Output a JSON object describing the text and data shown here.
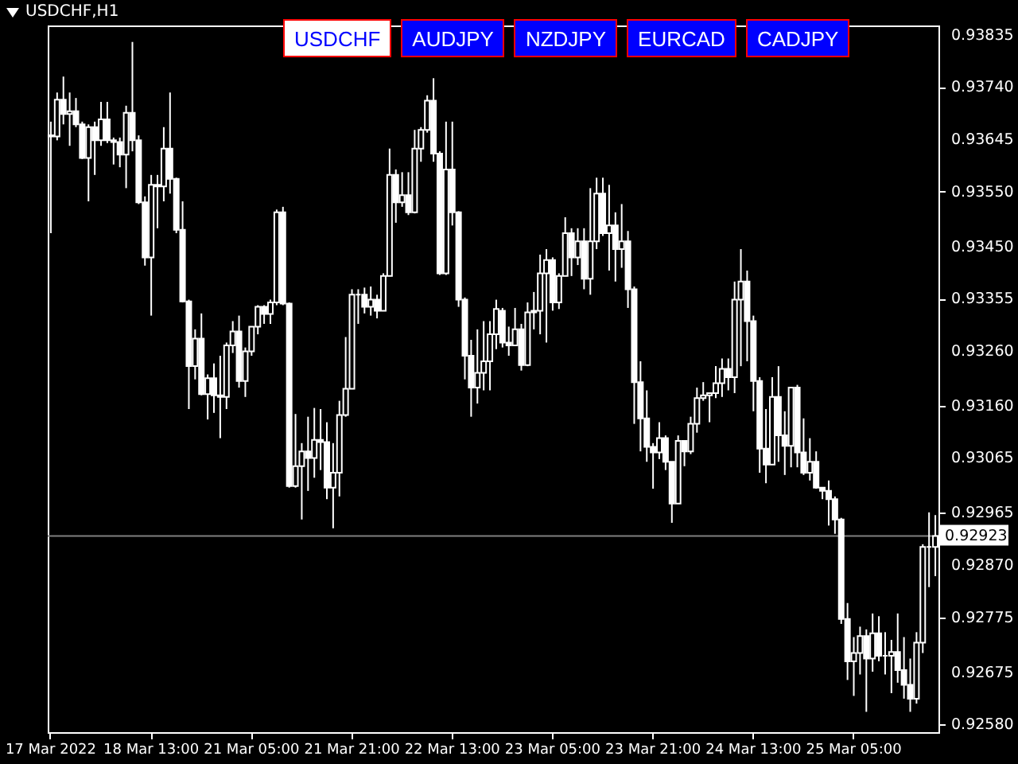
{
  "chart_data": {
    "type": "candlestick",
    "title": "USDCHF,H1",
    "annotations": [
      "USDCHF",
      "AUDJPY",
      "NZDJPY",
      "EURCAD",
      "CADJPY"
    ],
    "color": "#ffffff",
    "categories": [
      "17 Mar 2022",
      null,
      null,
      null,
      null,
      null,
      null,
      null,
      null,
      null,
      null,
      null,
      null,
      null,
      null,
      null,
      "18 Mar 13:00",
      null,
      null,
      null,
      null,
      null,
      null,
      null,
      null,
      null,
      null,
      null,
      null,
      null,
      null,
      null,
      "21 Mar 05:00",
      null,
      null,
      null,
      null,
      null,
      null,
      null,
      null,
      null,
      null,
      null,
      null,
      null,
      null,
      null,
      "21 Mar 21:00",
      null,
      null,
      null,
      null,
      null,
      null,
      null,
      null,
      null,
      null,
      null,
      null,
      null,
      null,
      null,
      "22 Mar 13:00",
      null,
      null,
      null,
      null,
      null,
      null,
      null,
      null,
      null,
      null,
      null,
      null,
      null,
      null,
      null,
      "23 Mar 05:00",
      null,
      null,
      null,
      null,
      null,
      null,
      null,
      null,
      null,
      null,
      null,
      null,
      null,
      null,
      null,
      "23 Mar 21:00",
      null,
      null,
      null,
      null,
      null,
      null,
      null,
      null,
      null,
      null,
      null,
      null,
      null,
      null,
      null,
      "24 Mar 13:00",
      null,
      null,
      null,
      null,
      null,
      null,
      null,
      null,
      null,
      null,
      null,
      null,
      null,
      null,
      null,
      "25 Mar 05:00",
      null,
      null,
      null,
      null,
      null,
      null,
      null,
      null,
      null,
      null,
      null,
      null,
      null
    ],
    "ohlc": [
      [
        0.93652,
        0.93677,
        0.93474,
        0.9365
      ],
      [
        0.9365,
        0.9373,
        0.93643,
        0.93717
      ],
      [
        0.93717,
        0.93759,
        0.93672,
        0.93691
      ],
      [
        0.93691,
        0.9373,
        0.93633,
        0.93696
      ],
      [
        0.93696,
        0.9372,
        0.93667,
        0.93672
      ],
      [
        0.93672,
        0.93677,
        0.93609,
        0.93611
      ],
      [
        0.93611,
        0.93672,
        0.93532,
        0.93667
      ],
      [
        0.93667,
        0.93677,
        0.9358,
        0.93643
      ],
      [
        0.93643,
        0.93713,
        0.93633,
        0.93681
      ],
      [
        0.93681,
        0.93713,
        0.93638,
        0.93643
      ],
      [
        0.93643,
        0.93648,
        0.93599,
        0.9364
      ],
      [
        0.9364,
        0.93648,
        0.93594,
        0.93617
      ],
      [
        0.93617,
        0.93706,
        0.93556,
        0.93693
      ],
      [
        0.93693,
        0.93822,
        0.93623,
        0.93643
      ],
      [
        0.93643,
        0.93652,
        0.93527,
        0.9353
      ],
      [
        0.9353,
        0.93541,
        0.93415,
        0.9343
      ],
      [
        0.9343,
        0.9358,
        0.93324,
        0.93562
      ],
      [
        0.93562,
        0.9358,
        0.93483,
        0.93559
      ],
      [
        0.93559,
        0.93667,
        0.93532,
        0.93628
      ],
      [
        0.93628,
        0.9373,
        0.93546,
        0.93573
      ],
      [
        0.93573,
        0.93575,
        0.93474,
        0.9348
      ],
      [
        0.9348,
        0.93532,
        0.93348,
        0.9335
      ],
      [
        0.9335,
        0.93353,
        0.93154,
        0.93232
      ],
      [
        0.93232,
        0.93299,
        0.93208,
        0.93282
      ],
      [
        0.93282,
        0.93328,
        0.93179,
        0.93181
      ],
      [
        0.93181,
        0.93217,
        0.93135,
        0.9321
      ],
      [
        0.9321,
        0.93237,
        0.93147,
        0.93179
      ],
      [
        0.93179,
        0.93251,
        0.93101,
        0.93176
      ],
      [
        0.93176,
        0.93275,
        0.93154,
        0.9327
      ],
      [
        0.9327,
        0.93314,
        0.93256,
        0.93295
      ],
      [
        0.93295,
        0.93324,
        0.93193,
        0.93205
      ],
      [
        0.93205,
        0.93266,
        0.93176,
        0.93259
      ],
      [
        0.93259,
        0.93304,
        0.93251,
        0.93304
      ],
      [
        0.93304,
        0.93343,
        0.9329,
        0.9334
      ],
      [
        0.9334,
        0.93343,
        0.93309,
        0.93327
      ],
      [
        0.93327,
        0.93353,
        0.93309,
        0.93348
      ],
      [
        0.93348,
        0.93517,
        0.93343,
        0.93512
      ],
      [
        0.93512,
        0.93522,
        0.93343,
        0.93346
      ],
      [
        0.93346,
        0.93348,
        0.93011,
        0.93014
      ],
      [
        0.93014,
        0.93145,
        0.93011,
        0.9305
      ],
      [
        0.9305,
        0.93092,
        0.92953,
        0.93077
      ],
      [
        0.93077,
        0.9314,
        0.93005,
        0.93065
      ],
      [
        0.93065,
        0.93156,
        0.93029,
        0.93098
      ],
      [
        0.93098,
        0.93154,
        0.93043,
        0.93094
      ],
      [
        0.93094,
        0.9313,
        0.9299,
        0.93011
      ],
      [
        0.93011,
        0.93092,
        0.92937,
        0.93038
      ],
      [
        0.93038,
        0.93169,
        0.92995,
        0.93143
      ],
      [
        0.93143,
        0.93285,
        0.9314,
        0.93191
      ],
      [
        0.93191,
        0.93372,
        0.93191,
        0.93362
      ],
      [
        0.93362,
        0.93372,
        0.93309,
        0.93362
      ],
      [
        0.93362,
        0.93375,
        0.93328,
        0.9334
      ],
      [
        0.9334,
        0.93377,
        0.93324,
        0.93353
      ],
      [
        0.93353,
        0.93362,
        0.93319,
        0.93333
      ],
      [
        0.93333,
        0.93401,
        0.93333,
        0.93396
      ],
      [
        0.93396,
        0.93628,
        0.93396,
        0.9358
      ],
      [
        0.9358,
        0.9359,
        0.93493,
        0.9353
      ],
      [
        0.9353,
        0.93585,
        0.93522,
        0.93543
      ],
      [
        0.93543,
        0.93585,
        0.93507,
        0.93512
      ],
      [
        0.93512,
        0.93662,
        0.9351,
        0.93628
      ],
      [
        0.93628,
        0.93667,
        0.93604,
        0.93662
      ],
      [
        0.93662,
        0.93725,
        0.93657,
        0.93715
      ],
      [
        0.93715,
        0.93756,
        0.93604,
        0.93619
      ],
      [
        0.93619,
        0.93623,
        0.93398,
        0.93401
      ],
      [
        0.93401,
        0.93677,
        0.93398,
        0.9359
      ],
      [
        0.9359,
        0.93677,
        0.93488,
        0.93512
      ],
      [
        0.93512,
        0.93514,
        0.9334,
        0.93353
      ],
      [
        0.93353,
        0.93357,
        0.93208,
        0.93251
      ],
      [
        0.93251,
        0.9328,
        0.9314,
        0.93193
      ],
      [
        0.93193,
        0.93299,
        0.93164,
        0.9322
      ],
      [
        0.9322,
        0.93314,
        0.93188,
        0.93241
      ],
      [
        0.93241,
        0.93314,
        0.93188,
        0.9329
      ],
      [
        0.9329,
        0.93353,
        0.93263,
        0.93336
      ],
      [
        0.93333,
        0.93338,
        0.93266,
        0.93275
      ],
      [
        0.93275,
        0.93304,
        0.93251,
        0.9327
      ],
      [
        0.9327,
        0.93338,
        0.9327,
        0.93299
      ],
      [
        0.93299,
        0.93309,
        0.93224,
        0.93234
      ],
      [
        0.93234,
        0.93348,
        0.93232,
        0.9333
      ],
      [
        0.9333,
        0.93367,
        0.93299,
        0.93333
      ],
      [
        0.93333,
        0.93435,
        0.9329,
        0.93401
      ],
      [
        0.93401,
        0.93445,
        0.93275,
        0.93425
      ],
      [
        0.93425,
        0.9343,
        0.93333,
        0.93348
      ],
      [
        0.93348,
        0.93401,
        0.93336,
        0.93396
      ],
      [
        0.93396,
        0.93503,
        0.93396,
        0.93474
      ],
      [
        0.93474,
        0.93483,
        0.93396,
        0.9343
      ],
      [
        0.9343,
        0.93483,
        0.93416,
        0.93459
      ],
      [
        0.93459,
        0.93483,
        0.93372,
        0.93391
      ],
      [
        0.93391,
        0.93556,
        0.93362,
        0.93459
      ],
      [
        0.93459,
        0.93575,
        0.93445,
        0.93546
      ],
      [
        0.93546,
        0.93575,
        0.93469,
        0.93474
      ],
      [
        0.93474,
        0.93562,
        0.93406,
        0.93488
      ],
      [
        0.93488,
        0.93512,
        0.93386,
        0.93445
      ],
      [
        0.93445,
        0.93527,
        0.93411,
        0.93459
      ],
      [
        0.93459,
        0.93478,
        0.93338,
        0.93372
      ],
      [
        0.93372,
        0.93377,
        0.93127,
        0.93203
      ],
      [
        0.93203,
        0.93241,
        0.93077,
        0.93137
      ],
      [
        0.93137,
        0.93188,
        0.93058,
        0.93085
      ],
      [
        0.93085,
        0.93092,
        0.93009,
        0.93075
      ],
      [
        0.93075,
        0.9313,
        0.93063,
        0.93101
      ],
      [
        0.93101,
        0.93106,
        0.93043,
        0.93058
      ],
      [
        0.93058,
        0.93058,
        0.92947,
        0.92982
      ],
      [
        0.92982,
        0.93106,
        0.92982,
        0.93096
      ],
      [
        0.93096,
        0.93096,
        0.9305,
        0.93077
      ],
      [
        0.93077,
        0.9314,
        0.93072,
        0.93127
      ],
      [
        0.93127,
        0.93193,
        0.93111,
        0.93174
      ],
      [
        0.93174,
        0.93203,
        0.93169,
        0.93179
      ],
      [
        0.93179,
        0.93183,
        0.9313,
        0.93183
      ],
      [
        0.93183,
        0.93232,
        0.93174,
        0.93201
      ],
      [
        0.93201,
        0.93246,
        0.93176,
        0.93227
      ],
      [
        0.93227,
        0.93246,
        0.93188,
        0.93212
      ],
      [
        0.93212,
        0.93386,
        0.93183,
        0.93353
      ],
      [
        0.93353,
        0.93445,
        0.93232,
        0.93386
      ],
      [
        0.93386,
        0.93406,
        0.93241,
        0.93314
      ],
      [
        0.93314,
        0.93324,
        0.9315,
        0.93205
      ],
      [
        0.93205,
        0.93212,
        0.93038,
        0.93082
      ],
      [
        0.93082,
        0.93154,
        0.93019,
        0.93053
      ],
      [
        0.93053,
        0.93212,
        0.93053,
        0.93176
      ],
      [
        0.93176,
        0.93232,
        0.93058,
        0.93106
      ],
      [
        0.93106,
        0.9315,
        0.93034,
        0.93087
      ],
      [
        0.93087,
        0.93193,
        0.93048,
        0.93193
      ],
      [
        0.93193,
        0.93198,
        0.93048,
        0.93075
      ],
      [
        0.93075,
        0.93137,
        0.93034,
        0.93038
      ],
      [
        0.93038,
        0.93101,
        0.93024,
        0.93058
      ],
      [
        0.93058,
        0.93077,
        0.93009,
        0.93011
      ],
      [
        0.93011,
        0.93011,
        0.9299,
        0.93005
      ],
      [
        0.93005,
        0.93024,
        0.92942,
        0.9299
      ],
      [
        0.9299,
        0.92995,
        0.92927,
        0.92953
      ],
      [
        0.92953,
        0.92956,
        0.92763,
        0.92772
      ],
      [
        0.92772,
        0.92801,
        0.92661,
        0.92695
      ],
      [
        0.92695,
        0.92739,
        0.92632,
        0.9271
      ],
      [
        0.9271,
        0.92758,
        0.92671,
        0.92741
      ],
      [
        0.92741,
        0.92753,
        0.92603,
        0.927
      ],
      [
        0.927,
        0.92782,
        0.92676,
        0.92746
      ],
      [
        0.92746,
        0.92777,
        0.92695,
        0.92705
      ],
      [
        0.92705,
        0.92748,
        0.92671,
        0.92705
      ],
      [
        0.92705,
        0.92734,
        0.92637,
        0.92712
      ],
      [
        0.92712,
        0.92782,
        0.92656,
        0.92679
      ],
      [
        0.92679,
        0.92739,
        0.92627,
        0.92652
      ],
      [
        0.92652,
        0.927,
        0.92603,
        0.92627
      ],
      [
        0.92627,
        0.92748,
        0.92618,
        0.92729
      ],
      [
        0.92729,
        0.92908,
        0.9271,
        0.92903
      ],
      [
        0.92903,
        0.92966,
        0.9283,
        0.92903
      ],
      [
        0.92903,
        0.92961,
        0.9285,
        0.92923
      ]
    ],
    "ylim": [
      0.92566,
      0.93852
    ],
    "yticks": [
      {
        "value": 0.9258,
        "label": "0.92580"
      },
      {
        "value": 0.92675,
        "label": "0.92675"
      },
      {
        "value": 0.92775,
        "label": "0.92775"
      },
      {
        "value": 0.9287,
        "label": "0.92870"
      },
      {
        "value": 0.92965,
        "label": "0.92965"
      },
      {
        "value": 0.93065,
        "label": "0.93065"
      },
      {
        "value": 0.9316,
        "label": "0.93160"
      },
      {
        "value": 0.9326,
        "label": "0.93260"
      },
      {
        "value": 0.93355,
        "label": "0.93355"
      },
      {
        "value": 0.9345,
        "label": "0.93450"
      },
      {
        "value": 0.9355,
        "label": "0.93550"
      },
      {
        "value": 0.93645,
        "label": "0.93645"
      },
      {
        "value": 0.9374,
        "label": "0.93740"
      },
      {
        "value": 0.93835,
        "label": "0.93835"
      }
    ],
    "ref_lines": [
      {
        "axis": "y",
        "value": 0.92923,
        "label": "0.92923",
        "color": "#808080"
      }
    ]
  }
}
